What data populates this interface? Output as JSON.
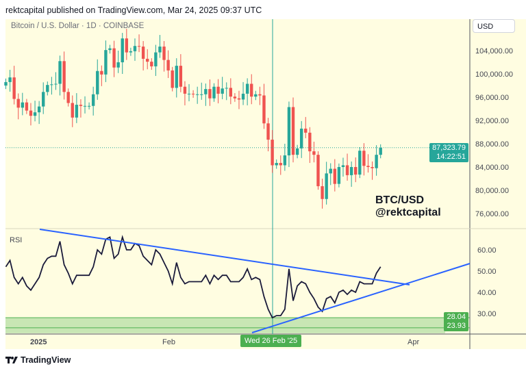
{
  "header": {
    "published": "rektcapital published on TradingView.com, Mar 24, 2025 09:37 UTC"
  },
  "symbol": "Bitcoin / U.S. Dollar · 1D · COINBASE",
  "currency_button": "USD",
  "watermark": {
    "line1": "BTC/USD",
    "line2": "@rektcapital"
  },
  "price_axis": [
    "104,000.00",
    "100,000.00",
    "96,000.00",
    "92,000.00",
    "88,000.00",
    "84,000.00",
    "80,000.00",
    "76,000.00"
  ],
  "last_price": {
    "value": "87,323.79",
    "countdown": "14:22:51"
  },
  "rsi": {
    "label": "RSI",
    "axis": [
      "60.00",
      "50.00",
      "40.00",
      "30.00"
    ],
    "tag_upper": "28.04",
    "tag_lower": "23.93"
  },
  "time_axis": [
    "2025",
    "Feb",
    "Apr"
  ],
  "crosshair_date": "Wed 26 Feb '25",
  "footer": {
    "brand": "TradingView"
  },
  "colors": {
    "up": "#26a69a",
    "down": "#ef5350",
    "background": "#fffde1",
    "trendline": "#2962ff",
    "rsi_band": "#4caf50"
  },
  "chart_data": {
    "type": "candlestick",
    "start_date": "2024-12-24",
    "first_open": 98.0,
    "close_thousands_usd": [
      98.6,
      99.4,
      95.7,
      94.2,
      95.1,
      93.7,
      92.8,
      93.4,
      94.4,
      96.9,
      98.1,
      98.2,
      98.3,
      102.2,
      96.9,
      95.0,
      92.5,
      94.7,
      94.5,
      94.5,
      94.5,
      96.5,
      100.5,
      99.9,
      104.1,
      104.4,
      101.1,
      102.0,
      106.1,
      103.7,
      103.9,
      104.8,
      104.7,
      102.6,
      102.1,
      101.3,
      103.7,
      104.7,
      102.4,
      100.6,
      97.6,
      101.4,
      97.8,
      96.6,
      96.6,
      96.5,
      96.5,
      96.5,
      97.4,
      95.8,
      97.8,
      96.6,
      97.5,
      97.6,
      96.1,
      95.8,
      95.6,
      96.6,
      98.3,
      96.1,
      96.5,
      96.3,
      91.5,
      88.7,
      84.3,
      84.7,
      84.3,
      86.0,
      94.3,
      86.1,
      87.2,
      90.6,
      89.9,
      86.7,
      86.1,
      80.7,
      78.5,
      82.9,
      83.7,
      81.1,
      84.0,
      84.3,
      82.6,
      84.0,
      82.7,
      86.8,
      84.2,
      84.0,
      83.8,
      86.1,
      87.3
    ],
    "rsi_values": [
      52,
      55,
      47,
      44,
      47,
      43,
      41,
      44,
      47,
      53,
      56,
      57,
      57,
      64,
      53,
      49,
      44,
      48,
      48,
      48,
      48,
      52,
      60,
      58,
      65,
      66,
      56,
      58,
      66,
      60,
      60,
      63,
      62,
      57,
      55,
      53,
      60,
      58,
      54,
      50,
      44,
      54,
      47,
      44,
      45,
      45,
      45,
      45,
      48,
      44,
      48,
      46,
      48,
      48,
      45,
      45,
      45,
      47,
      51,
      46,
      47,
      46,
      38,
      32,
      28,
      29,
      29,
      32,
      51,
      36,
      43,
      45,
      44,
      40,
      37,
      33,
      31,
      37,
      38,
      35,
      40,
      41,
      39,
      41,
      40,
      45,
      44,
      44,
      44,
      49,
      52
    ],
    "price_range": [
      74000,
      108000
    ],
    "rsi_range": [
      20,
      70
    ]
  }
}
